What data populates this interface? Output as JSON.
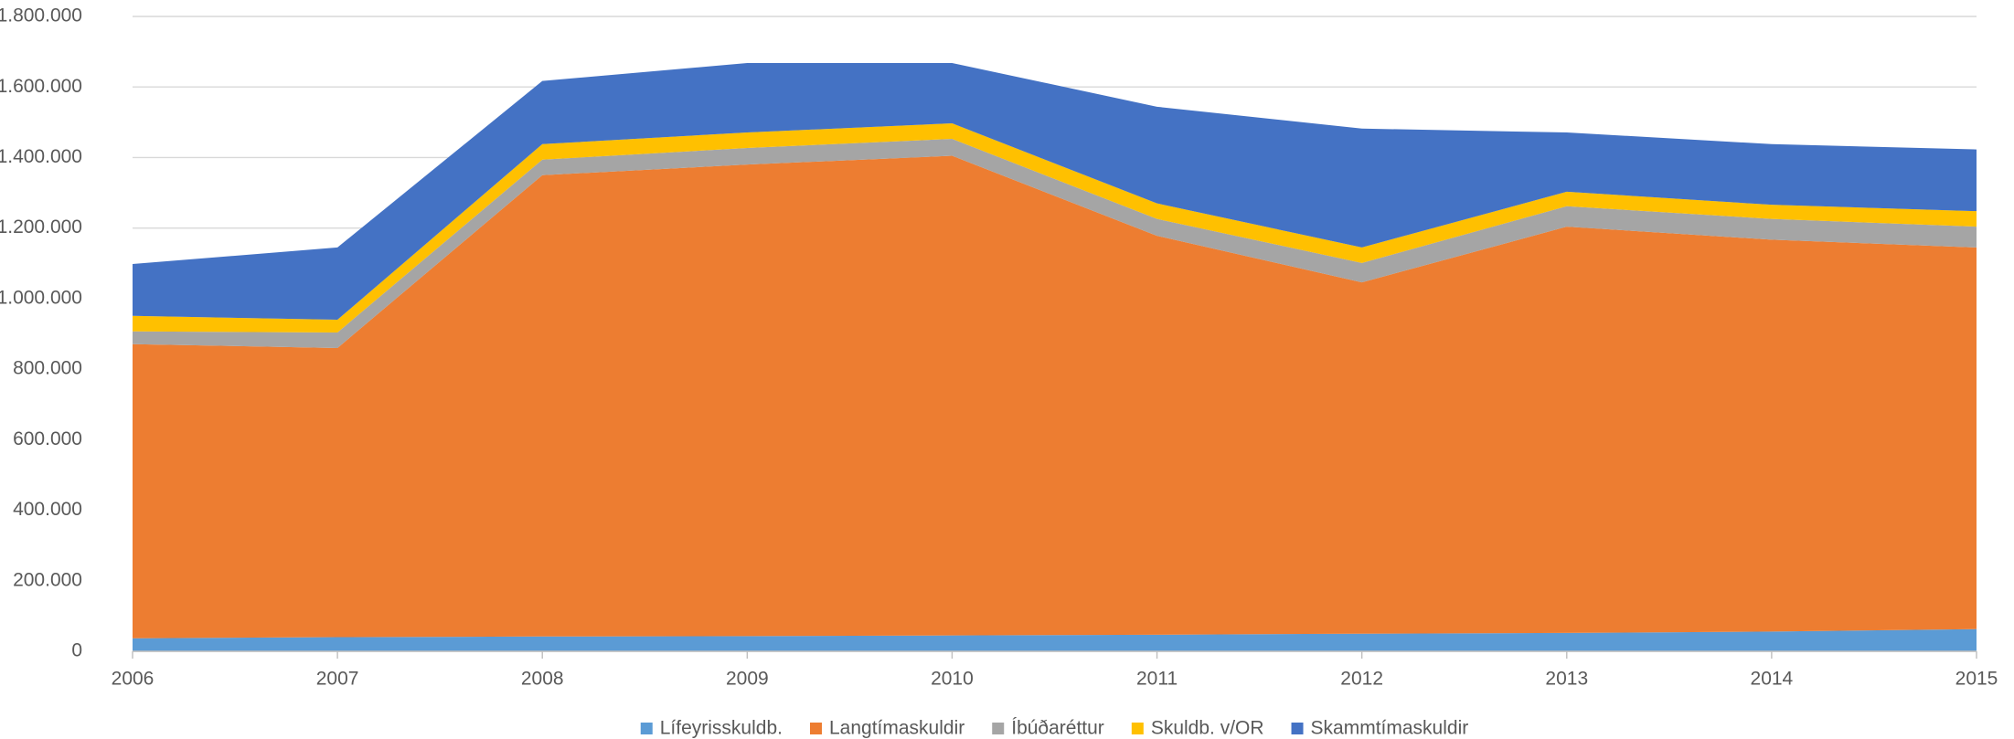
{
  "chart_data": {
    "type": "stacked_area",
    "categories": [
      "2006",
      "2007",
      "2008",
      "2009",
      "2010",
      "2011",
      "2012",
      "2013",
      "2014",
      "2015"
    ],
    "series": [
      {
        "name": "Lífeyrisskuldb.",
        "color": "#5b9bd5",
        "values": [
          37000,
          40000,
          42000,
          43000,
          45000,
          47000,
          50000,
          52000,
          56000,
          63000
        ]
      },
      {
        "name": "Langtímaskuldir",
        "color": "#ed7d31",
        "values": [
          834000,
          820000,
          1308000,
          1337000,
          1360000,
          1131000,
          996000,
          1152000,
          1111000,
          1082000
        ]
      },
      {
        "name": "Íbúðaréttur",
        "color": "#a5a5a5",
        "values": [
          36000,
          44000,
          44000,
          47000,
          48000,
          48000,
          55000,
          58000,
          59000,
          59000
        ]
      },
      {
        "name": "Skuldb. v/OR",
        "color": "#ffc000",
        "values": [
          44000,
          36000,
          44000,
          44000,
          44000,
          44000,
          44000,
          41000,
          40000,
          44000
        ]
      },
      {
        "name": "Skammtímaskuldir",
        "color": "#4472c4",
        "values": [
          147000,
          205000,
          179000,
          197000,
          171000,
          274000,
          337000,
          168000,
          172000,
          175000
        ]
      }
    ],
    "ylim": [
      0,
      1800000
    ],
    "yticks": [
      0,
      {
        "value": 200000,
        "label": "200.000"
      },
      {
        "value": 400000,
        "label": "400.000"
      },
      {
        "value": 600000,
        "label": "600.000"
      },
      {
        "value": 800000,
        "label": "800.000"
      },
      {
        "value": 1000000,
        "label": "1.000.000"
      },
      {
        "value": 1200000,
        "label": "1.200.000"
      },
      {
        "value": 1400000,
        "label": "1.400.000"
      },
      {
        "value": 1600000,
        "label": "1.600.000"
      },
      {
        "value": 1800000,
        "label": "1.800.000"
      }
    ],
    "grid": true,
    "legend": "bottom"
  }
}
